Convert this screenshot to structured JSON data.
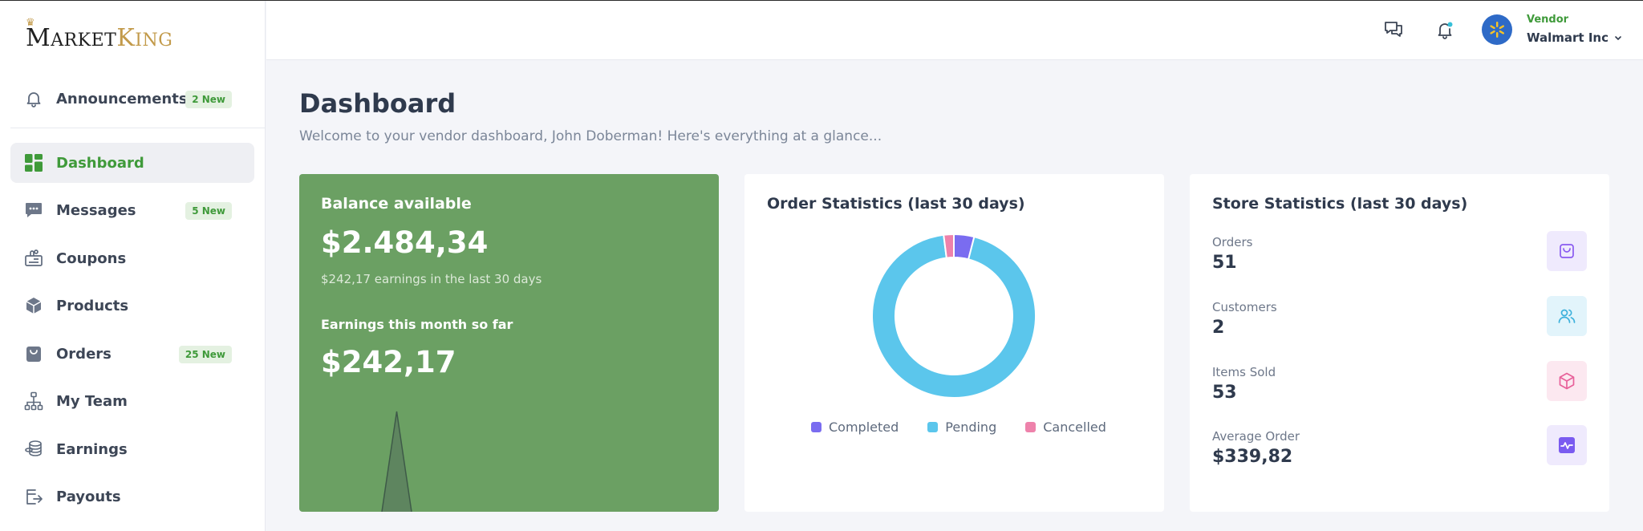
{
  "brand": {
    "logo_first": "Market",
    "logo_second": "King"
  },
  "sidebar": {
    "items": [
      {
        "label": "Announcements",
        "badge": "2 New",
        "icon": "bell-icon"
      },
      {
        "label": "Dashboard",
        "icon": "dashboard-grid-icon",
        "active": true
      },
      {
        "label": "Messages",
        "badge": "5 New",
        "icon": "chat-bubble-icon"
      },
      {
        "label": "Coupons",
        "icon": "coupon-icon"
      },
      {
        "label": "Products",
        "icon": "box-icon"
      },
      {
        "label": "Orders",
        "badge": "25 New",
        "icon": "shopping-bag-icon"
      },
      {
        "label": "My Team",
        "icon": "org-chart-icon"
      },
      {
        "label": "Earnings",
        "icon": "coins-icon"
      },
      {
        "label": "Payouts",
        "icon": "payout-export-icon"
      }
    ]
  },
  "topbar": {
    "messages_icon": "chat-icon",
    "notifications_icon": "bell-icon",
    "user_role": "Vendor",
    "vendor_name": "Walmart Inc"
  },
  "main": {
    "title": "Dashboard",
    "subtitle": "Welcome to your vendor dashboard, John Doberman! Here's everything at a glance..."
  },
  "balance_card": {
    "title": "Balance available",
    "amount": "$2.484,34",
    "earnings_note": "$242,17 earnings in the last 30 days",
    "month_title": "Earnings this month so far",
    "month_amount": "$242,17"
  },
  "order_stats": {
    "title": "Order Statistics (last 30 days)",
    "legend": [
      "Completed",
      "Pending",
      "Cancelled"
    ]
  },
  "store_stats": {
    "title": "Store Statistics (last 30 days)",
    "items": [
      {
        "label": "Orders",
        "value": "51",
        "icon": "shopping-bag-icon"
      },
      {
        "label": "Customers",
        "value": "2",
        "icon": "users-icon"
      },
      {
        "label": "Items Sold",
        "value": "53",
        "icon": "box-icon"
      },
      {
        "label": "Average Order",
        "value": "$339,82",
        "icon": "activity-icon"
      }
    ]
  },
  "colors": {
    "accent_green": "#3f9a3a",
    "balance_card": "#6ba063",
    "completed": "#7a6cf0",
    "pending": "#5bc6ec",
    "cancelled": "#ee82ab"
  },
  "chart_data": [
    {
      "type": "pie",
      "categories": [
        "Completed",
        "Pending",
        "Cancelled"
      ],
      "values": [
        4,
        94,
        2
      ],
      "donut": true,
      "legend": "bottom"
    },
    {
      "type": "area",
      "x": [
        0,
        1,
        2
      ],
      "values": [
        0,
        1,
        0
      ]
    }
  ]
}
